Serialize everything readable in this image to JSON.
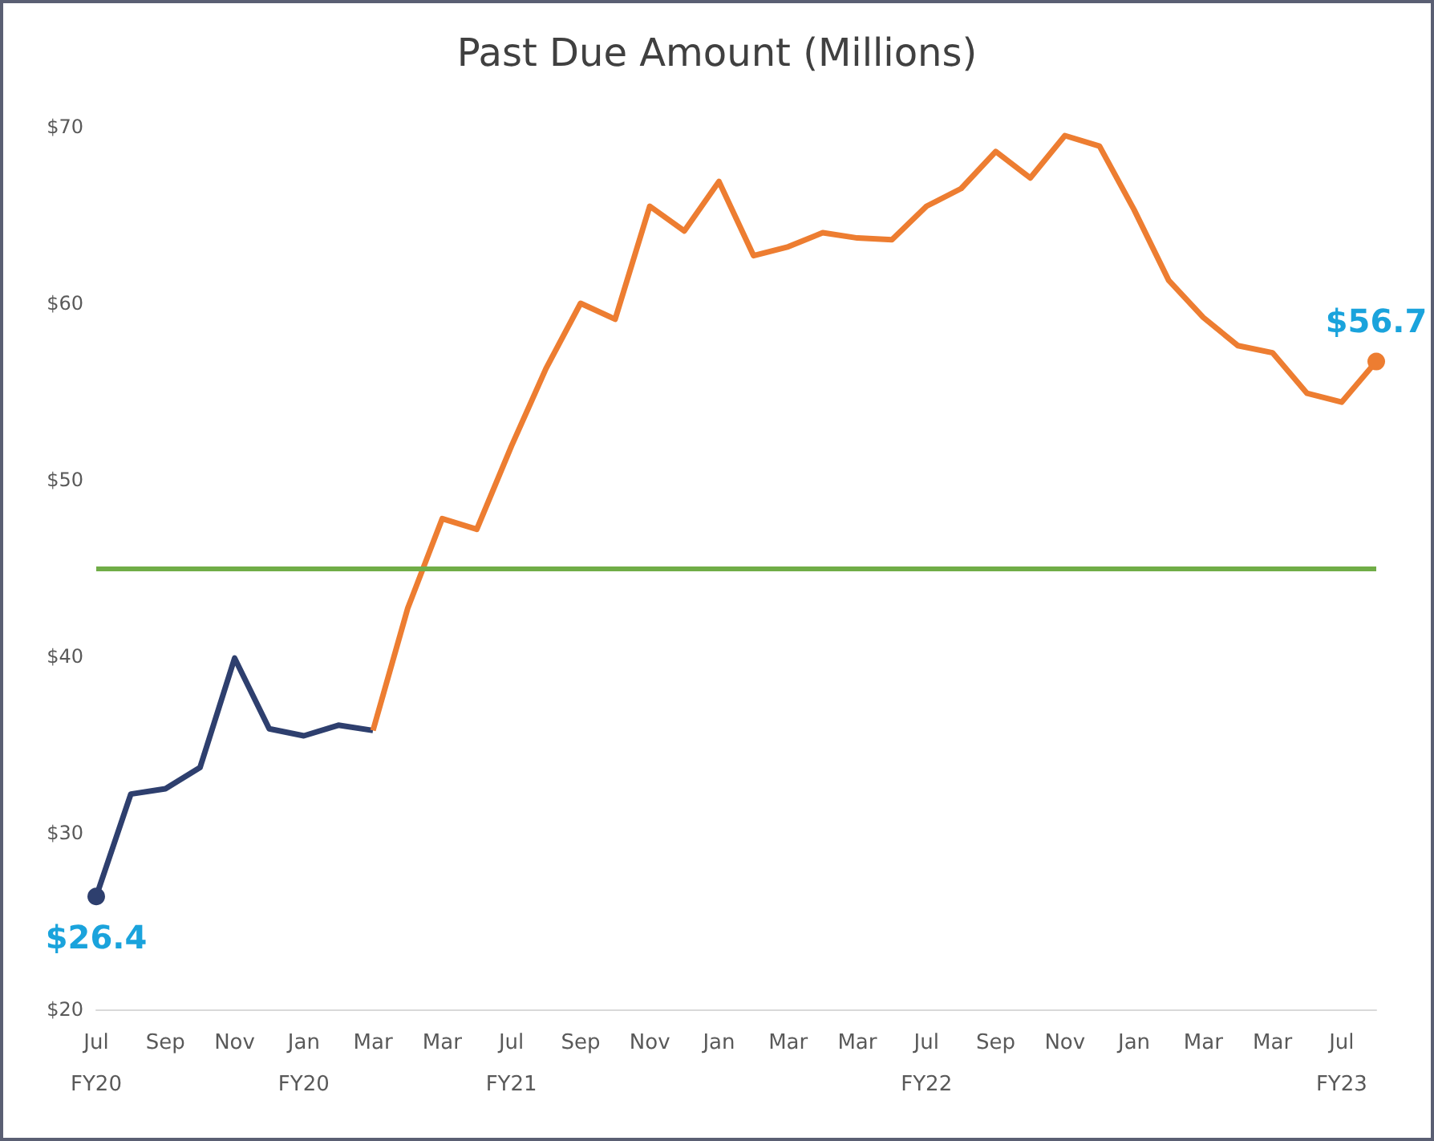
{
  "chart_data": {
    "type": "line",
    "title": "Past Due Amount (Millions)",
    "categories": [
      "Jul\nFY20",
      null,
      "Sep",
      null,
      "Nov",
      null,
      "Jan\nFY20",
      null,
      "Mar",
      null,
      "Mar",
      null,
      "Jul\nFY21",
      null,
      "Sep",
      null,
      "Nov",
      null,
      "Jan",
      null,
      "Mar",
      null,
      "Mar",
      null,
      "Jul\nFY22",
      null,
      "Sep",
      null,
      "Nov",
      null,
      "Jan",
      null,
      "Mar",
      null,
      "Mar",
      null,
      "Jul\nFY23",
      null
    ],
    "series": [
      {
        "color": "#2e3f6e",
        "values": [
          26.4,
          32.2,
          32.5,
          33.7,
          39.9,
          35.9,
          35.5,
          36.1,
          35.8,
          null,
          null,
          null,
          null,
          null,
          null,
          null,
          null,
          null,
          null,
          null,
          null,
          null,
          null,
          null,
          null,
          null,
          null,
          null,
          null,
          null,
          null,
          null,
          null,
          null,
          null,
          null,
          null,
          null
        ],
        "value_labels": [
          "$26.4",
          null,
          null,
          null,
          null,
          null,
          null,
          null,
          null,
          null,
          null,
          null,
          null,
          null,
          null,
          null,
          null,
          null,
          null,
          null,
          null,
          null,
          null,
          null,
          null,
          null,
          null,
          null,
          null,
          null,
          null,
          null,
          null,
          null,
          null,
          null,
          null,
          null
        ]
      },
      {
        "color": "#ed7d31",
        "values": [
          null,
          null,
          null,
          null,
          null,
          null,
          null,
          null,
          35.8,
          42.7,
          47.8,
          47.2,
          51.9,
          56.3,
          60.0,
          59.1,
          65.5,
          64.1,
          66.9,
          62.7,
          63.2,
          64.0,
          63.7,
          63.6,
          65.5,
          66.5,
          68.6,
          67.1,
          69.5,
          68.9,
          65.3,
          61.3,
          59.2,
          57.6,
          57.2,
          54.9,
          54.4,
          56.7
        ],
        "value_labels": [
          null,
          null,
          null,
          null,
          null,
          null,
          null,
          null,
          null,
          null,
          null,
          null,
          null,
          null,
          null,
          null,
          null,
          null,
          null,
          null,
          null,
          null,
          null,
          null,
          null,
          null,
          null,
          null,
          null,
          null,
          null,
          null,
          null,
          null,
          null,
          null,
          null,
          "$56.7"
        ]
      }
    ],
    "ylim": [
      20,
      70
    ],
    "yticks": [
      {
        "value": 20,
        "label": "$20"
      },
      {
        "value": 30,
        "label": "$30"
      },
      {
        "value": 40,
        "label": "$40"
      },
      {
        "value": 50,
        "label": "$50"
      },
      {
        "value": 60,
        "label": "$60"
      },
      {
        "value": 70,
        "label": "$70"
      }
    ],
    "ref_lines": [
      {
        "axis": "y",
        "value": 45,
        "label": null,
        "color": "#70ad47"
      }
    ],
    "grid": false
  }
}
